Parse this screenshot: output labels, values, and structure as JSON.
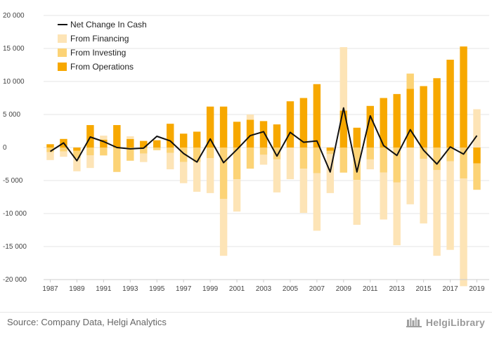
{
  "chart_data": {
    "type": "bar",
    "x": [
      "1987",
      "1988",
      "1989",
      "1990",
      "1991",
      "1992",
      "1993",
      "1994",
      "1995",
      "1996",
      "1997",
      "1998",
      "1999",
      "2000",
      "2001",
      "2002",
      "2003",
      "2004",
      "2005",
      "2006",
      "2007",
      "2008",
      "2009",
      "2010",
      "2011",
      "2012",
      "2013",
      "2014",
      "2015",
      "2016",
      "2017",
      "2018",
      "2019"
    ],
    "x_tick_labels": [
      "1987",
      "1989",
      "1991",
      "1993",
      "1995",
      "1997",
      "1999",
      "2001",
      "2003",
      "2005",
      "2007",
      "2009",
      "2011",
      "2013",
      "2015",
      "2017",
      "2019"
    ],
    "y_tick_labels": [
      "20 000",
      "15 000",
      "10 000",
      "5 000",
      "0",
      "-5 000",
      "-10 000",
      "-15 000",
      "-20 000"
    ],
    "ylim": [
      -20000,
      20000
    ],
    "grid": "horizontal",
    "legend_placement": "top-left",
    "series": [
      {
        "name": "Net Change In Cash",
        "type": "line",
        "color": "#111111",
        "values": [
          -600,
          700,
          -2000,
          1600,
          900,
          0,
          -200,
          -100,
          1700,
          1000,
          -900,
          -2200,
          1300,
          -2300,
          -300,
          1800,
          2400,
          -1300,
          2300,
          800,
          1000,
          -3700,
          6000,
          -3700,
          4800,
          300,
          -1200,
          2700,
          -400,
          -2500,
          100,
          -1000,
          1800
        ]
      },
      {
        "name": "From Financing",
        "type": "bar",
        "color": "#fde4b6",
        "values": [
          -1200,
          -800,
          -2000,
          -1900,
          600,
          0,
          400,
          -1300,
          0,
          -2500,
          -3200,
          -4500,
          -5300,
          -8600,
          -4900,
          800,
          -1500,
          -5000,
          -4800,
          -6700,
          -8700,
          -5900,
          9600,
          -6800,
          -1500,
          -7100,
          -9500,
          -8600,
          -9800,
          -13000,
          -13400,
          -16300,
          5800
        ]
      },
      {
        "name": "From Investing",
        "type": "bar",
        "color": "#fcd376",
        "values": [
          -700,
          -600,
          -1100,
          -1200,
          -1200,
          -3700,
          -2000,
          -900,
          -400,
          -800,
          -2200,
          -2200,
          -1600,
          -7800,
          -4800,
          -3200,
          -1100,
          -1800,
          0,
          -3200,
          -3900,
          -500,
          -3800,
          -4900,
          -1800,
          -3800,
          -5300,
          2300,
          -1700,
          -3400,
          -2100,
          -4700,
          -4000
        ]
      },
      {
        "name": "From Operations",
        "type": "bar",
        "color": "#f7a800",
        "values": [
          500,
          1300,
          -500,
          3400,
          1200,
          3400,
          1300,
          1000,
          1100,
          3600,
          2100,
          2400,
          6200,
          6200,
          3900,
          4200,
          4000,
          3500,
          7000,
          7500,
          9600,
          -500,
          5600,
          3000,
          6300,
          7500,
          8100,
          8900,
          9300,
          10500,
          13300,
          15300,
          -2400
        ]
      }
    ]
  },
  "footer": {
    "source": "Source: Company Data, Helgi Analytics",
    "brand": "HelgiLibrary"
  }
}
